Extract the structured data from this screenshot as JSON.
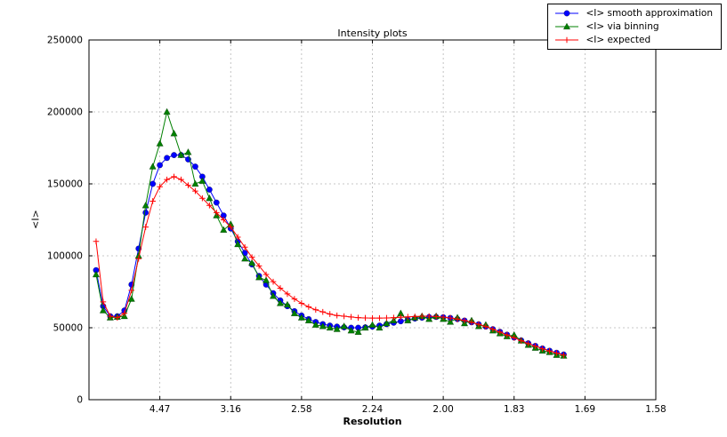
{
  "chart_data": {
    "type": "line",
    "title": "Intensity plots",
    "xlabel": "Resolution",
    "ylabel": "<I>",
    "grid": true,
    "legend_position": "upper right outside axes",
    "x_axis": {
      "unit": "resolution (d-spacing labels on reciprocal-square scale)",
      "range": [
        0,
        0.4
      ],
      "tick_positions": [
        0.05,
        0.1,
        0.15,
        0.2,
        0.25,
        0.3,
        0.35,
        0.4
      ],
      "tick_labels": [
        "4.47",
        "3.16",
        "2.58",
        "2.24",
        "2.00",
        "1.83",
        "1.69",
        "1.58"
      ]
    },
    "y_axis": {
      "range": [
        0,
        250000
      ],
      "tick_positions": [
        0,
        50000,
        100000,
        150000,
        200000,
        250000
      ],
      "tick_labels": [
        "0",
        "50000",
        "100000",
        "150000",
        "200000",
        "250000"
      ]
    },
    "x": [
      0.005,
      0.01,
      0.015,
      0.02,
      0.025,
      0.03,
      0.035,
      0.04,
      0.045,
      0.05,
      0.055,
      0.06,
      0.065,
      0.07,
      0.075,
      0.08,
      0.085,
      0.09,
      0.095,
      0.1,
      0.105,
      0.11,
      0.115,
      0.12,
      0.125,
      0.13,
      0.135,
      0.14,
      0.145,
      0.15,
      0.155,
      0.16,
      0.165,
      0.17,
      0.175,
      0.18,
      0.185,
      0.19,
      0.195,
      0.2,
      0.205,
      0.21,
      0.215,
      0.22,
      0.225,
      0.23,
      0.235,
      0.24,
      0.245,
      0.25,
      0.255,
      0.26,
      0.265,
      0.27,
      0.275,
      0.28,
      0.285,
      0.29,
      0.295,
      0.3,
      0.305,
      0.31,
      0.315,
      0.32,
      0.325,
      0.33,
      0.335
    ],
    "series": [
      {
        "name": "<I> smooth approximation",
        "color": "#0000ff",
        "marker": "circle",
        "values": [
          90000,
          65000,
          58000,
          58000,
          62000,
          80000,
          105000,
          130000,
          150000,
          163000,
          168000,
          170000,
          170000,
          167000,
          162000,
          155000,
          146000,
          137000,
          128000,
          119000,
          110000,
          102000,
          94000,
          86000,
          80000,
          74000,
          69000,
          65000,
          61500,
          58500,
          56000,
          54000,
          52500,
          51500,
          50800,
          50300,
          50000,
          50000,
          50300,
          50800,
          51500,
          52500,
          53500,
          54500,
          55500,
          56400,
          57000,
          57400,
          57500,
          57300,
          56800,
          56000,
          55000,
          53800,
          52400,
          50800,
          49000,
          47200,
          45200,
          43200,
          41200,
          39200,
          37400,
          35600,
          34000,
          32600,
          31400
        ]
      },
      {
        "name": "<I> via binning",
        "color": "#008000",
        "marker": "triangle",
        "values": [
          87000,
          62000,
          57000,
          57500,
          58000,
          70000,
          100000,
          135000,
          162000,
          178000,
          200000,
          185000,
          170000,
          172000,
          150000,
          152000,
          140000,
          128000,
          118000,
          122000,
          108000,
          98000,
          95000,
          85000,
          83000,
          72000,
          67000,
          66000,
          60000,
          57000,
          55000,
          52000,
          51000,
          50000,
          49000,
          51000,
          48000,
          47000,
          50000,
          52000,
          50000,
          53000,
          55000,
          60000,
          55000,
          57000,
          58000,
          56000,
          58000,
          56000,
          54000,
          57000,
          53000,
          55000,
          51000,
          52000,
          48000,
          46000,
          44000,
          45000,
          41000,
          38000,
          36000,
          34000,
          33000,
          31000,
          30500
        ]
      },
      {
        "name": "<I> expected",
        "color": "#ff0000",
        "marker": "plus",
        "values": [
          110000,
          68000,
          58000,
          57000,
          60000,
          76000,
          98000,
          120000,
          138000,
          148000,
          153000,
          155000,
          153000,
          149000,
          145000,
          140000,
          135000,
          130000,
          125000,
          120000,
          113000,
          106000,
          99000,
          93000,
          87000,
          82000,
          77500,
          73500,
          70000,
          67000,
          64500,
          62500,
          61000,
          59500,
          58500,
          58000,
          57500,
          57000,
          56800,
          56700,
          56700,
          56800,
          57000,
          57300,
          57600,
          57800,
          58000,
          58000,
          57800,
          57400,
          56800,
          56000,
          55000,
          53800,
          52400,
          50800,
          49000,
          47000,
          45000,
          43000,
          41000,
          39000,
          37200,
          35400,
          33800,
          32400,
          31000
        ]
      }
    ]
  }
}
